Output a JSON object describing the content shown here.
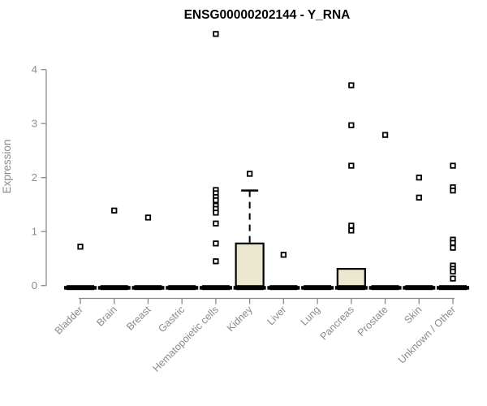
{
  "chart_data": {
    "type": "boxplot",
    "title": "ENSG00000202144 - Y_RNA",
    "ylabel": "Expression",
    "xlabel": "",
    "yticks": [
      0,
      1,
      2,
      3,
      4
    ],
    "ylim": [
      0,
      4
    ],
    "grid": false,
    "legend": false,
    "categories": [
      "Bladder",
      "Brain",
      "Breast",
      "Gastric",
      "Hematopoietic cells",
      "Kidney",
      "Liver",
      "Lung",
      "Pancreas",
      "Prostate",
      "Skin",
      "Unknown / Other"
    ],
    "boxes": [
      {
        "category": "Bladder",
        "q1": 0,
        "median": 0,
        "q3": 0,
        "whisker_low": 0,
        "whisker_high": 0,
        "outliers": [
          0.72
        ]
      },
      {
        "category": "Brain",
        "q1": 0,
        "median": 0,
        "q3": 0,
        "whisker_low": 0,
        "whisker_high": 0,
        "outliers": [
          1.39
        ]
      },
      {
        "category": "Breast",
        "q1": 0,
        "median": 0,
        "q3": 0,
        "whisker_low": 0,
        "whisker_high": 0,
        "outliers": [
          1.26
        ]
      },
      {
        "category": "Gastric",
        "q1": 0,
        "median": 0,
        "q3": 0,
        "whisker_low": 0,
        "whisker_high": 0,
        "outliers": []
      },
      {
        "category": "Hematopoietic cells",
        "q1": 0,
        "median": 0,
        "q3": 0,
        "whisker_low": 0,
        "whisker_high": 0,
        "outliers": [
          4.66,
          1.77,
          1.71,
          1.64,
          1.58,
          1.48,
          1.42,
          1.35,
          1.15,
          0.78,
          0.45
        ]
      },
      {
        "category": "Kidney",
        "q1": 0,
        "median": 0,
        "q3": 0.78,
        "whisker_low": 0,
        "whisker_high": 1.76,
        "outliers": [
          2.07
        ]
      },
      {
        "category": "Liver",
        "q1": 0,
        "median": 0,
        "q3": 0,
        "whisker_low": 0,
        "whisker_high": 0,
        "outliers": [
          0.57
        ]
      },
      {
        "category": "Lung",
        "q1": 0,
        "median": 0,
        "q3": 0,
        "whisker_low": 0,
        "whisker_high": 0,
        "outliers": []
      },
      {
        "category": "Pancreas",
        "q1": 0,
        "median": 0,
        "q3": 0.31,
        "whisker_low": 0,
        "whisker_high": 0.31,
        "outliers": [
          3.71,
          2.97,
          2.22,
          1.11,
          1.02
        ]
      },
      {
        "category": "Prostate",
        "q1": 0,
        "median": 0,
        "q3": 0,
        "whisker_low": 0,
        "whisker_high": 0,
        "outliers": [
          2.79
        ]
      },
      {
        "category": "Skin",
        "q1": 0,
        "median": 0,
        "q3": 0,
        "whisker_low": 0,
        "whisker_high": 0,
        "outliers": [
          2.0,
          1.63
        ]
      },
      {
        "category": "Unknown / Other",
        "q1": 0,
        "median": 0,
        "q3": 0,
        "whisker_low": 0,
        "whisker_high": 0,
        "outliers": [
          2.22,
          1.82,
          1.76,
          0.85,
          0.79,
          0.7,
          0.37,
          0.31,
          0.26,
          0.13
        ]
      }
    ],
    "colors": {
      "box_fill": "#EBE6CE",
      "box_border": "#000000",
      "median": "#000000",
      "whisker": "#000000",
      "outlier_stroke": "#000000",
      "outlier_fill": "#FFFFFF",
      "axis": "#8A8A8A",
      "tick_label": "#8A8A8A",
      "title": "#000000",
      "background": "#FFFFFF"
    }
  }
}
